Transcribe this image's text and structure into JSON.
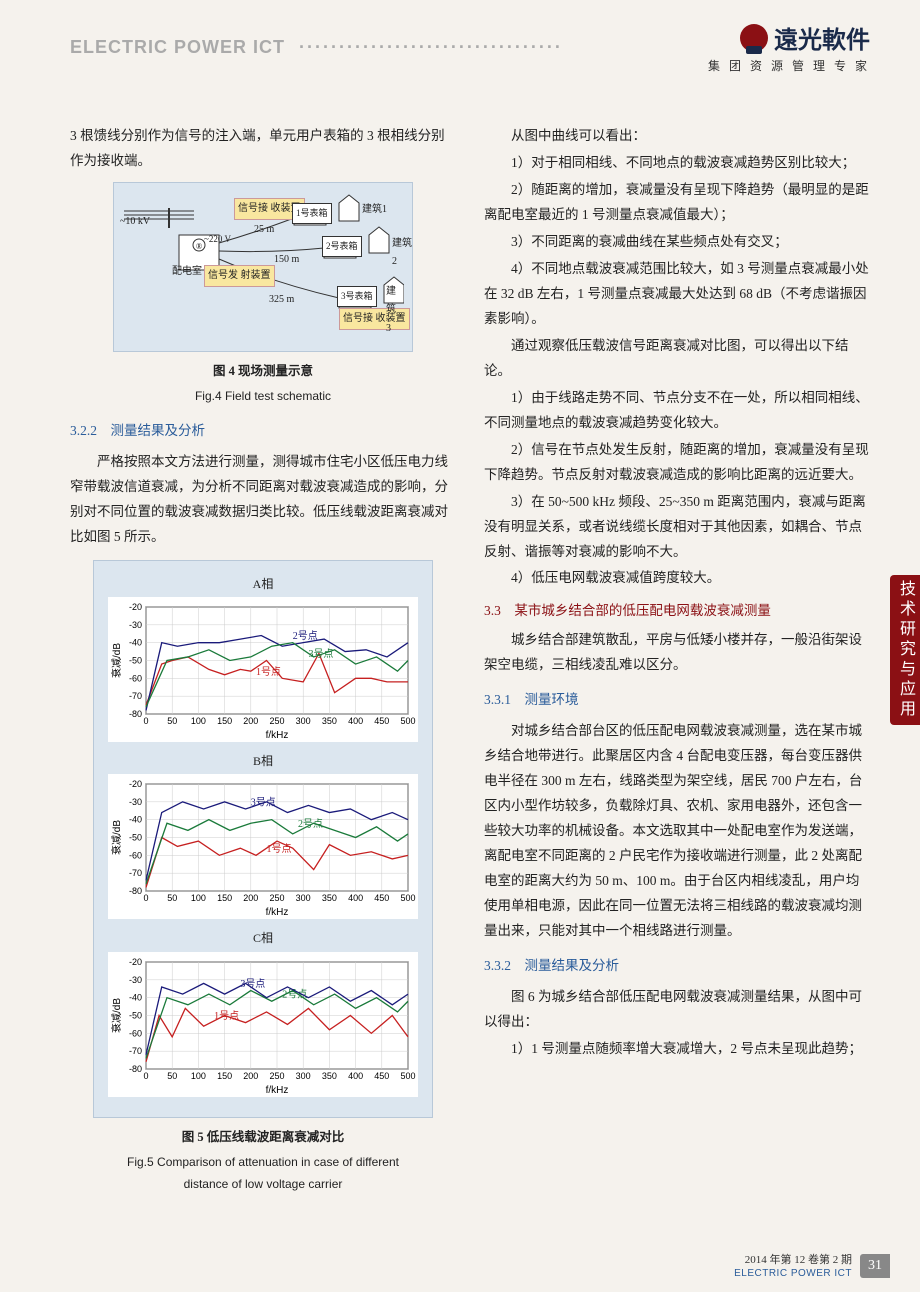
{
  "header": {
    "journal_upper": "ELECTRIC POWER ICT",
    "dots": "·································",
    "logo_text": "遠光軟件",
    "logo_sub": "集 团 资 源 管 理 专 家"
  },
  "side_tab": "技术研究与应用",
  "left_col": {
    "intro": "3 根馈线分别作为信号的注入端，单元用户表箱的 3 根相线分别作为接收端。",
    "fig4": {
      "caption_cn": "图 4 现场测量示意",
      "caption_en": "Fig.4 Field test schematic",
      "labels": {
        "voltage_in": "~10 kV",
        "substation": "配电室",
        "voltage_out": "~220 V",
        "tx_device": "信号发\n射装置",
        "rx_device_top": "信号接\n收装置",
        "rx_device_bot": "信号接\n收装置",
        "meter1": "1号表箱",
        "meter2": "2号表箱",
        "meter3": "3号表箱",
        "building1": "建筑1",
        "building2": "建筑2",
        "building3": "建筑3",
        "dist1": "25 m",
        "dist2": "150 m",
        "dist3": "325 m"
      }
    },
    "section_322": "3.2.2　测量结果及分析",
    "p322": "严格按照本文方法进行测量，测得城市住宅小区低压电力线窄带载波信道衰减，为分析不同距离对载波衰减造成的影响，分别对不同位置的载波衰减数据归类比较。低压线载波距离衰减对比如图 5 所示。",
    "fig5": {
      "caption_cn": "图 5 低压线载波距离衰减对比",
      "caption_en_l1": "Fig.5 Comparison of attenuation in case of different",
      "caption_en_l2": "distance of low voltage carrier",
      "xlabel": "f/kHz",
      "ylabel": "衰减/dB",
      "xlim": [
        0,
        500
      ],
      "ylim": [
        -80,
        -20
      ],
      "xticks": [
        0,
        50,
        100,
        150,
        200,
        250,
        300,
        350,
        400,
        450,
        500
      ],
      "yticks": [
        -20,
        -30,
        -40,
        -50,
        -60,
        -70,
        -80
      ],
      "panels": [
        {
          "title": "A相",
          "series": [
            {
              "name": "1号点",
              "color": "#c62020",
              "label_x": 210,
              "label_y": -58,
              "data": [
                [
                  0,
                  -75
                ],
                [
                  30,
                  -52
                ],
                [
                  50,
                  -50
                ],
                [
                  80,
                  -48
                ],
                [
                  120,
                  -55
                ],
                [
                  150,
                  -58
                ],
                [
                  180,
                  -55
                ],
                [
                  200,
                  -56
                ],
                [
                  230,
                  -50
                ],
                [
                  260,
                  -60
                ],
                [
                  300,
                  -62
                ],
                [
                  330,
                  -46
                ],
                [
                  360,
                  -68
                ],
                [
                  400,
                  -60
                ],
                [
                  430,
                  -60
                ],
                [
                  460,
                  -62
                ],
                [
                  500,
                  -62
                ]
              ]
            },
            {
              "name": "2号点",
              "color": "#1a1a7a",
              "label_x": 280,
              "label_y": -38,
              "data": [
                [
                  0,
                  -78
                ],
                [
                  30,
                  -40
                ],
                [
                  60,
                  -42
                ],
                [
                  100,
                  -40
                ],
                [
                  140,
                  -40
                ],
                [
                  180,
                  -38
                ],
                [
                  220,
                  -36
                ],
                [
                  260,
                  -42
                ],
                [
                  300,
                  -40
                ],
                [
                  340,
                  -38
                ],
                [
                  380,
                  -45
                ],
                [
                  420,
                  -44
                ],
                [
                  460,
                  -48
                ],
                [
                  500,
                  -40
                ]
              ]
            },
            {
              "name": "3号点",
              "color": "#1a7a3a",
              "label_x": 310,
              "label_y": -48,
              "data": [
                [
                  0,
                  -76
                ],
                [
                  40,
                  -50
                ],
                [
                  80,
                  -48
                ],
                [
                  120,
                  -44
                ],
                [
                  160,
                  -50
                ],
                [
                  200,
                  -48
                ],
                [
                  240,
                  -42
                ],
                [
                  280,
                  -40
                ],
                [
                  320,
                  -48
                ],
                [
                  360,
                  -44
                ],
                [
                  400,
                  -52
                ],
                [
                  440,
                  -48
                ],
                [
                  480,
                  -56
                ],
                [
                  500,
                  -50
                ]
              ]
            }
          ]
        },
        {
          "title": "B相",
          "series": [
            {
              "name": "1号点",
              "color": "#c62020",
              "label_x": 230,
              "label_y": -58,
              "data": [
                [
                  0,
                  -78
                ],
                [
                  30,
                  -50
                ],
                [
                  60,
                  -55
                ],
                [
                  100,
                  -52
                ],
                [
                  140,
                  -60
                ],
                [
                  180,
                  -56
                ],
                [
                  210,
                  -60
                ],
                [
                  250,
                  -52
                ],
                [
                  280,
                  -56
                ],
                [
                  320,
                  -68
                ],
                [
                  350,
                  -54
                ],
                [
                  390,
                  -60
                ],
                [
                  430,
                  -58
                ],
                [
                  470,
                  -62
                ],
                [
                  500,
                  -60
                ]
              ]
            },
            {
              "name": "2号点",
              "color": "#1a7a3a",
              "label_x": 290,
              "label_y": -44,
              "data": [
                [
                  0,
                  -76
                ],
                [
                  40,
                  -42
                ],
                [
                  80,
                  -46
                ],
                [
                  120,
                  -40
                ],
                [
                  160,
                  -46
                ],
                [
                  200,
                  -42
                ],
                [
                  240,
                  -40
                ],
                [
                  280,
                  -48
                ],
                [
                  320,
                  -42
                ],
                [
                  360,
                  -46
                ],
                [
                  400,
                  -50
                ],
                [
                  440,
                  -44
                ],
                [
                  480,
                  -52
                ],
                [
                  500,
                  -48
                ]
              ]
            },
            {
              "name": "3号点",
              "color": "#1a1a7a",
              "label_x": 200,
              "label_y": -32,
              "data": [
                [
                  0,
                  -74
                ],
                [
                  30,
                  -36
                ],
                [
                  70,
                  -30
                ],
                [
                  110,
                  -34
                ],
                [
                  150,
                  -30
                ],
                [
                  190,
                  -34
                ],
                [
                  230,
                  -30
                ],
                [
                  270,
                  -36
                ],
                [
                  310,
                  -32
                ],
                [
                  350,
                  -36
                ],
                [
                  390,
                  -34
                ],
                [
                  430,
                  -40
                ],
                [
                  470,
                  -36
                ],
                [
                  500,
                  -40
                ]
              ]
            }
          ]
        },
        {
          "title": "C相",
          "series": [
            {
              "name": "1号点",
              "color": "#c62020",
              "label_x": 130,
              "label_y": -52,
              "data": [
                [
                  0,
                  -76
                ],
                [
                  25,
                  -50
                ],
                [
                  50,
                  -62
                ],
                [
                  75,
                  -46
                ],
                [
                  110,
                  -56
                ],
                [
                  150,
                  -50
                ],
                [
                  190,
                  -54
                ],
                [
                  230,
                  -48
                ],
                [
                  270,
                  -55
                ],
                [
                  310,
                  -46
                ],
                [
                  350,
                  -58
                ],
                [
                  390,
                  -50
                ],
                [
                  430,
                  -60
                ],
                [
                  470,
                  -50
                ],
                [
                  500,
                  -62
                ]
              ]
            },
            {
              "name": "2号点",
              "color": "#1a7a3a",
              "label_x": 260,
              "label_y": -40,
              "data": [
                [
                  0,
                  -74
                ],
                [
                  40,
                  -40
                ],
                [
                  80,
                  -44
                ],
                [
                  120,
                  -38
                ],
                [
                  160,
                  -44
                ],
                [
                  200,
                  -36
                ],
                [
                  240,
                  -42
                ],
                [
                  280,
                  -36
                ],
                [
                  320,
                  -44
                ],
                [
                  360,
                  -38
                ],
                [
                  400,
                  -46
                ],
                [
                  440,
                  -40
                ],
                [
                  480,
                  -48
                ],
                [
                  500,
                  -42
                ]
              ]
            },
            {
              "name": "3号点",
              "color": "#1a1a7a",
              "label_x": 180,
              "label_y": -34,
              "data": [
                [
                  0,
                  -72
                ],
                [
                  30,
                  -34
                ],
                [
                  70,
                  -38
                ],
                [
                  110,
                  -32
                ],
                [
                  150,
                  -38
                ],
                [
                  190,
                  -32
                ],
                [
                  230,
                  -40
                ],
                [
                  270,
                  -34
                ],
                [
                  310,
                  -40
                ],
                [
                  350,
                  -34
                ],
                [
                  390,
                  -42
                ],
                [
                  430,
                  -36
                ],
                [
                  470,
                  -44
                ],
                [
                  500,
                  -38
                ]
              ]
            }
          ]
        }
      ]
    }
  },
  "right_col": {
    "p0": "从图中曲线可以看出：",
    "p1": "1）对于相同相线、不同地点的载波衰减趋势区别比较大；",
    "p2": "2）随距离的增加，衰减量没有呈现下降趋势（最明显的是距离配电室最近的 1 号测量点衰减值最大）；",
    "p3": "3）不同距离的衰减曲线在某些频点处有交叉；",
    "p4": "4）不同地点载波衰减范围比较大，如 3 号测量点衰减最小处在 32 dB 左右，1 号测量点衰减最大处达到 68 dB（不考虑谐振因素影响）。",
    "p5": "通过观察低压载波信号距离衰减对比图，可以得出以下结论。",
    "p6": "1）由于线路走势不同、节点分支不在一处，所以相同相线、不同测量地点的载波衰减趋势变化较大。",
    "p7": "2）信号在节点处发生反射，随距离的增加，衰减量没有呈现下降趋势。节点反射对载波衰减造成的影响比距离的远近要大。",
    "p8": "3）在 50~500 kHz 频段、25~350 m 距离范围内，衰减与距离没有明显关系，或者说线缆长度相对于其他因素，如耦合、节点反射、谐振等对衰减的影响不大。",
    "p9": "4）低压电网载波衰减值跨度较大。",
    "section_33": "3.3　某市城乡结合部的低压配电网载波衰减测量",
    "p33": "城乡结合部建筑散乱，平房与低矮小楼并存，一般沿街架设架空电缆，三相线凌乱难以区分。",
    "section_331": "3.3.1　测量环境",
    "p331": "对城乡结合部台区的低压配电网载波衰减测量，选在某市城乡结合地带进行。此聚居区内含 4 台配电变压器，每台变压器供电半径在 300 m 左右，线路类型为架空线，居民 700 户左右，台区内小型作坊较多，负载除灯具、农机、家用电器外，还包含一些较大功率的机械设备。本文选取其中一处配电室作为发送端，离配电室不同距离的 2 户民宅作为接收端进行测量，此 2 处离配电室的距离大约为 50 m、100 m。由于台区内相线凌乱，用户均使用单相电源，因此在同一位置无法将三相线路的载波衰减均测量出来，只能对其中一个相线路进行测量。",
    "section_332": "3.3.2　测量结果及分析",
    "p332a": "图 6 为城乡结合部低压配电网载波衰减测量结果，从图中可以得出：",
    "p332b": "1）1 号测量点随频率增大衰减增大，2 号点未呈现此趋势；"
  },
  "footer": {
    "year_line": "2014 年第 12 卷第 2 期",
    "journal": "ELECTRIC POWER ICT",
    "page_num": "31"
  }
}
